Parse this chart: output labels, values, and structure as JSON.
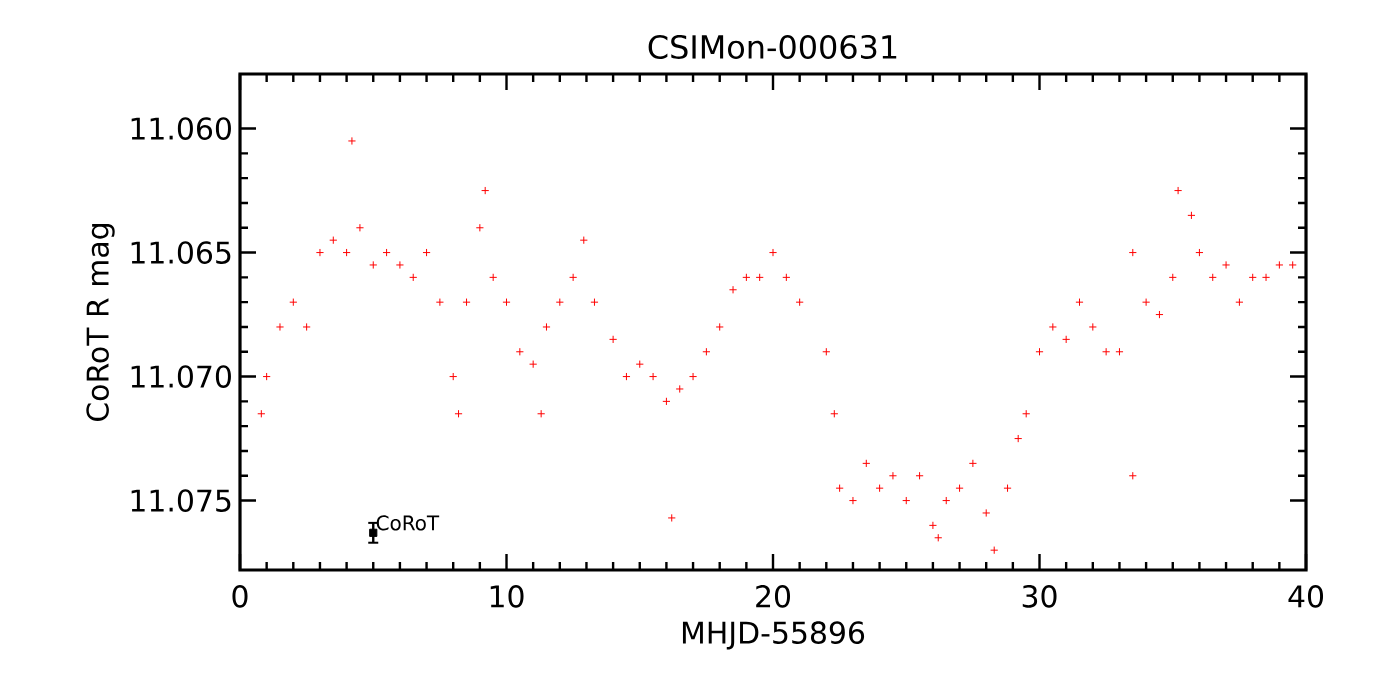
{
  "chart_data": {
    "type": "scatter",
    "title": "CSIMon-000631",
    "xlabel": "MHJD-55896",
    "ylabel": "CoRoT R mag",
    "xlim": [
      0,
      40
    ],
    "ylim": [
      11.0778,
      11.0578
    ],
    "xticks": [
      0,
      10,
      20,
      30,
      40
    ],
    "yticks": [
      {
        "value": 11.06,
        "label": "11.060"
      },
      {
        "value": 11.065,
        "label": "11.065"
      },
      {
        "value": 11.07,
        "label": "11.070"
      },
      {
        "value": 11.075,
        "label": "11.075"
      }
    ],
    "series": [
      {
        "marker": "cross",
        "color": "#ff0000",
        "x": [
          0.8,
          1.0,
          1.5,
          2.0,
          2.5,
          3.0,
          3.5,
          4.0,
          4.2,
          4.5,
          5.0,
          5.5,
          6.0,
          6.5,
          7.0,
          7.5,
          8.0,
          8.2,
          8.5,
          9.0,
          9.2,
          9.5,
          10.0,
          10.5,
          11.0,
          11.3,
          11.5,
          12.0,
          12.5,
          12.9,
          13.3,
          14.0,
          14.5,
          15.0,
          15.5,
          16.0,
          16.2,
          16.5,
          17.0,
          17.5,
          18.0,
          18.5,
          19.0,
          19.5,
          20.0,
          20.5,
          21.0,
          22.0,
          22.3,
          22.5,
          23.0,
          23.5,
          24.0,
          24.5,
          25.0,
          25.5,
          26.0,
          26.2,
          26.5,
          27.0,
          27.5,
          28.0,
          28.3,
          28.8,
          29.2,
          29.5,
          30.0,
          30.5,
          31.0,
          31.5,
          32.0,
          32.5,
          33.0,
          33.5,
          33.5,
          34.0,
          34.5,
          35.0,
          35.2,
          35.7,
          36.0,
          36.5,
          37.0,
          37.5,
          38.0,
          38.5,
          39.0,
          39.5
        ],
        "values": [
          11.0715,
          11.07,
          11.068,
          11.067,
          11.068,
          11.065,
          11.0645,
          11.065,
          11.0605,
          11.064,
          11.0655,
          11.065,
          11.0655,
          11.066,
          11.065,
          11.067,
          11.07,
          11.0715,
          11.067,
          11.064,
          11.0625,
          11.066,
          11.067,
          11.069,
          11.0695,
          11.0715,
          11.068,
          11.067,
          11.066,
          11.0645,
          11.067,
          11.0685,
          11.07,
          11.0695,
          11.07,
          11.071,
          11.0757,
          11.0705,
          11.07,
          11.069,
          11.068,
          11.0665,
          11.066,
          11.066,
          11.065,
          11.066,
          11.067,
          11.069,
          11.0715,
          11.0745,
          11.075,
          11.0735,
          11.0745,
          11.074,
          11.075,
          11.074,
          11.076,
          11.0765,
          11.075,
          11.0745,
          11.0735,
          11.0755,
          11.077,
          11.0745,
          11.0725,
          11.0715,
          11.069,
          11.068,
          11.0685,
          11.067,
          11.068,
          11.069,
          11.069,
          11.065,
          11.074,
          11.067,
          11.0675,
          11.066,
          11.0625,
          11.0635,
          11.065,
          11.066,
          11.0655,
          11.067,
          11.066,
          11.066,
          11.0655,
          11.0655
        ]
      },
      {
        "marker": "square",
        "color": "#000000",
        "x": [
          5
        ],
        "values": [
          11.0763
        ],
        "errors": [
          0.0004
        ]
      }
    ],
    "annotations": [
      {
        "text": "CoRoT",
        "x": 5,
        "y": 11.0763
      }
    ]
  }
}
